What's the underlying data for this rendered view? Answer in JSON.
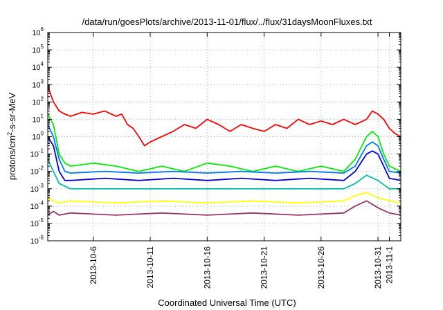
{
  "chart_data": {
    "type": "line",
    "title": "/data/run/goesPlots/archive/2013-11-01/flux/../flux/31daysMoonFluxes.txt",
    "xlabel": "Coordinated Universal Time (UTC)",
    "ylabel_prefix": "protons/cm",
    "ylabel_sup": "2",
    "ylabel_suffix": "-s-sr-MeV",
    "yscale": "log",
    "ylim": [
      1e-06,
      1000000.0
    ],
    "xlim": [
      "2013-10-02",
      "2013-11-02"
    ],
    "grid": true,
    "legend": "none",
    "y_ticks": [
      {
        "value": 1e-06,
        "base": "10",
        "exp": "-6"
      },
      {
        "value": 1e-05,
        "base": "10",
        "exp": "-5"
      },
      {
        "value": 0.0001,
        "base": "10",
        "exp": "-4"
      },
      {
        "value": 0.001,
        "base": "10",
        "exp": "-3"
      },
      {
        "value": 0.01,
        "base": "10",
        "exp": "-2"
      },
      {
        "value": 0.1,
        "base": "10",
        "exp": "-1"
      },
      {
        "value": 1.0,
        "base": "10",
        "exp": "0"
      },
      {
        "value": 10.0,
        "base": "10",
        "exp": "1"
      },
      {
        "value": 100.0,
        "base": "10",
        "exp": "2"
      },
      {
        "value": 1000.0,
        "base": "10",
        "exp": "3"
      },
      {
        "value": 10000.0,
        "base": "10",
        "exp": "4"
      },
      {
        "value": 100000.0,
        "base": "10",
        "exp": "5"
      },
      {
        "value": 1000000.0,
        "base": "10",
        "exp": "6"
      }
    ],
    "x_ticks": [
      {
        "date": "2013-10-06",
        "label": "2013-10-6"
      },
      {
        "date": "2013-10-11",
        "label": "2013-10-11"
      },
      {
        "date": "2013-10-16",
        "label": "2013-10-16"
      },
      {
        "date": "2013-10-21",
        "label": "2013-10-21"
      },
      {
        "date": "2013-10-26",
        "label": "2013-10-26"
      },
      {
        "date": "2013-10-31",
        "label": "2013-10-31"
      },
      {
        "date": "2013-11-01",
        "label": "2013-11-1"
      }
    ],
    "series": [
      {
        "color": "#ff0000",
        "x": [
          "2013-10-02",
          "2013-10-02T12:00",
          "2013-10-03",
          "2013-10-03T12:00",
          "2013-10-04",
          "2013-10-05",
          "2013-10-06",
          "2013-10-07",
          "2013-10-08",
          "2013-10-08T12:00",
          "2013-10-09",
          "2013-10-09T12:00",
          "2013-10-10",
          "2013-10-10T12:00",
          "2013-10-11",
          "2013-10-12",
          "2013-10-13",
          "2013-10-14",
          "2013-10-15",
          "2013-10-16",
          "2013-10-17",
          "2013-10-18",
          "2013-10-19",
          "2013-10-20",
          "2013-10-21",
          "2013-10-22",
          "2013-10-23",
          "2013-10-24",
          "2013-10-25",
          "2013-10-26",
          "2013-10-27",
          "2013-10-28",
          "2013-10-29",
          "2013-10-30",
          "2013-10-30T12:00",
          "2013-10-31",
          "2013-10-31T12:00",
          "2013-11-01",
          "2013-11-01T12:00",
          "2013-11-02"
        ],
        "y": [
          800,
          100,
          30,
          20,
          15,
          25,
          20,
          30,
          15,
          20,
          5,
          3,
          1,
          0.3,
          0.5,
          1,
          2,
          5,
          3,
          10,
          5,
          2,
          5,
          3,
          2,
          5,
          3,
          10,
          5,
          8,
          5,
          10,
          5,
          10,
          30,
          20,
          10,
          3,
          1.5,
          1
        ]
      },
      {
        "color": "#00ee00",
        "x": [
          "2013-10-02",
          "2013-10-02T12:00",
          "2013-10-03",
          "2013-10-03T12:00",
          "2013-10-04",
          "2013-10-06",
          "2013-10-08",
          "2013-10-10",
          "2013-10-12",
          "2013-10-14",
          "2013-10-16",
          "2013-10-18",
          "2013-10-20",
          "2013-10-22",
          "2013-10-24",
          "2013-10-26",
          "2013-10-28",
          "2013-10-29",
          "2013-10-30",
          "2013-10-30T12:00",
          "2013-10-31",
          "2013-10-31T12:00",
          "2013-11-01",
          "2013-11-02"
        ],
        "y": [
          20,
          5,
          0.1,
          0.03,
          0.02,
          0.03,
          0.02,
          0.01,
          0.02,
          0.01,
          0.03,
          0.02,
          0.01,
          0.02,
          0.01,
          0.02,
          0.01,
          0.05,
          1,
          2,
          1,
          0.1,
          0.02,
          0.01
        ]
      },
      {
        "color": "#0077ff",
        "x": [
          "2013-10-02",
          "2013-10-02T12:00",
          "2013-10-03",
          "2013-10-03T12:00",
          "2013-10-04",
          "2013-10-07",
          "2013-10-10",
          "2013-10-13",
          "2013-10-16",
          "2013-10-19",
          "2013-10-22",
          "2013-10-25",
          "2013-10-28",
          "2013-10-29",
          "2013-10-30",
          "2013-10-30T12:00",
          "2013-10-31",
          "2013-10-31T12:00",
          "2013-11-01",
          "2013-11-02"
        ],
        "y": [
          5,
          1,
          0.05,
          0.01,
          0.008,
          0.01,
          0.008,
          0.01,
          0.008,
          0.01,
          0.008,
          0.01,
          0.008,
          0.02,
          0.3,
          0.5,
          0.3,
          0.05,
          0.01,
          0.008
        ]
      },
      {
        "color": "#0000dd",
        "x": [
          "2013-10-02",
          "2013-10-02T12:00",
          "2013-10-03",
          "2013-10-03T12:00",
          "2013-10-04",
          "2013-10-07",
          "2013-10-10",
          "2013-10-13",
          "2013-10-16",
          "2013-10-19",
          "2013-10-22",
          "2013-10-25",
          "2013-10-28",
          "2013-10-29",
          "2013-10-30",
          "2013-10-30T12:00",
          "2013-10-31",
          "2013-10-31T12:00",
          "2013-11-01",
          "2013-11-02"
        ],
        "y": [
          1,
          0.3,
          0.01,
          0.003,
          0.003,
          0.004,
          0.003,
          0.004,
          0.003,
          0.004,
          0.003,
          0.004,
          0.003,
          0.01,
          0.1,
          0.15,
          0.1,
          0.02,
          0.004,
          0.003
        ]
      },
      {
        "color": "#00bbaa",
        "x": [
          "2013-10-02",
          "2013-10-02T12:00",
          "2013-10-03",
          "2013-10-04",
          "2013-10-08",
          "2013-10-12",
          "2013-10-16",
          "2013-10-20",
          "2013-10-24",
          "2013-10-28",
          "2013-10-29",
          "2013-10-30",
          "2013-10-31",
          "2013-11-01",
          "2013-11-02"
        ],
        "y": [
          0.05,
          0.01,
          0.002,
          0.001,
          0.001,
          0.001,
          0.001,
          0.001,
          0.001,
          0.001,
          0.002,
          0.006,
          0.003,
          0.001,
          0.001
        ]
      },
      {
        "color": "#ffff00",
        "x": [
          "2013-10-02",
          "2013-10-02T12:00",
          "2013-10-03",
          "2013-10-04",
          "2013-10-08",
          "2013-10-12",
          "2013-10-16",
          "2013-10-20",
          "2013-10-24",
          "2013-10-28",
          "2013-10-29",
          "2013-10-30",
          "2013-10-31",
          "2013-11-01",
          "2013-11-02"
        ],
        "y": [
          0.0003,
          0.0002,
          0.00015,
          0.0002,
          0.00015,
          0.0002,
          0.00015,
          0.0002,
          0.00015,
          0.0002,
          0.0004,
          0.0006,
          0.0003,
          0.0002,
          0.00015
        ]
      },
      {
        "color": "#993366",
        "x": [
          "2013-10-02",
          "2013-10-02T12:00",
          "2013-10-03",
          "2013-10-04",
          "2013-10-08",
          "2013-10-12",
          "2013-10-16",
          "2013-10-20",
          "2013-10-24",
          "2013-10-28",
          "2013-10-29",
          "2013-10-30",
          "2013-10-31",
          "2013-11-01",
          "2013-11-02"
        ],
        "y": [
          3e-05,
          5e-05,
          3e-05,
          4e-05,
          3e-05,
          4e-05,
          3e-05,
          4e-05,
          3e-05,
          4e-05,
          0.0001,
          0.0002,
          8e-05,
          4e-05,
          3e-05
        ]
      }
    ]
  }
}
